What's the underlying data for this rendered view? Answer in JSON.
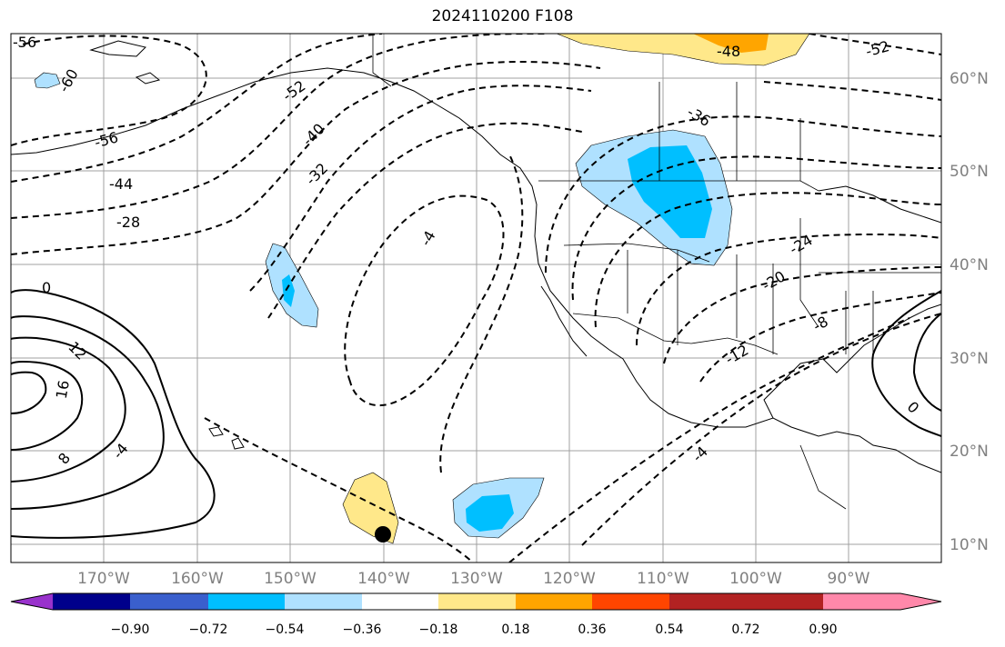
{
  "title": "2024110200 F108",
  "map": {
    "lon_ticks": [
      "170°W",
      "160°W",
      "150°W",
      "140°W",
      "130°W",
      "120°W",
      "110°W",
      "100°W",
      "90°W"
    ],
    "lat_ticks": [
      "60°N",
      "50°N",
      "40°N",
      "30°N",
      "20°N",
      "10°N"
    ]
  },
  "contour_labels": [
    "-56",
    "-60",
    "-52",
    "-56",
    "-40",
    "-44",
    "-32",
    "-28",
    "-4",
    "-36",
    "-48",
    "-52",
    "-24",
    "-20",
    "-12",
    "-8",
    "-4",
    "0",
    "12",
    "16",
    "8",
    "-4",
    "0"
  ],
  "colorbar": {
    "colors": [
      "#9932cc",
      "#00008b",
      "#3a5fcd",
      "#00bfff",
      "#afe1ff",
      "#ffffff",
      "#ffe88a",
      "#ffa500",
      "#ff4500",
      "#b22222",
      "#ff88aa"
    ],
    "labels": [
      "−0.90",
      "−0.72",
      "−0.54",
      "−0.36",
      "−0.18",
      "0.18",
      "0.36",
      "0.54",
      "0.72",
      "0.90"
    ]
  }
}
